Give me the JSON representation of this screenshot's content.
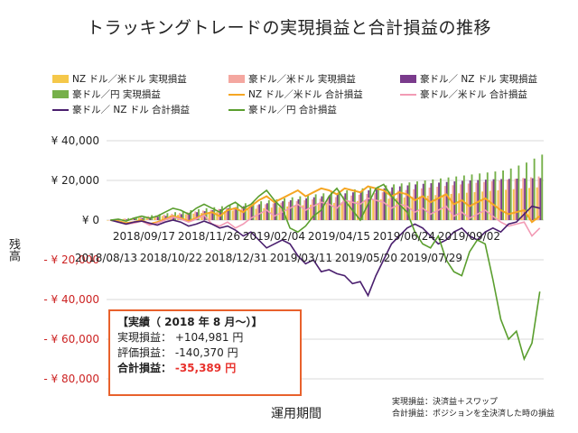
{
  "chart_data": {
    "type": "bar+line",
    "title": "トラッキングトレードの実現損益と合計損益の推移",
    "xlabel": "運用期間",
    "ylabel": "残高",
    "ylim": [
      -80000,
      40000
    ],
    "yticks": [
      {
        "value": 40000,
        "label": "¥ 40,000",
        "color": "#222222"
      },
      {
        "value": 20000,
        "label": "¥ 20,000",
        "color": "#222222"
      },
      {
        "value": 0,
        "label": "¥ 0",
        "color": "#222222"
      },
      {
        "value": -20000,
        "label": "- ¥ 20,000",
        "color": "#cc2222"
      },
      {
        "value": -40000,
        "label": "- ¥ 40,000",
        "color": "#cc2222"
      },
      {
        "value": -60000,
        "label": "- ¥ 60,000",
        "color": "#cc2222"
      },
      {
        "value": -80000,
        "label": "- ¥ 80,000",
        "color": "#cc2222"
      }
    ],
    "xtick_labels_row1": [
      "2018/09/17",
      "2018/11/26",
      "2019/02/04",
      "2019/04/15",
      "2019/06/24",
      "2019/09/02"
    ],
    "xtick_labels_row2": [
      "2018/08/13",
      "2018/10/22",
      "2018/12/31",
      "2019/03/11",
      "2019/05/20",
      "2019/07/29"
    ],
    "n_weeks": 56,
    "legend": [
      {
        "name": "NZ ドル／米ドル 実現損益",
        "kind": "bar",
        "color": "#f5c84a"
      },
      {
        "name": "豪ドル／米ドル 実現損益",
        "kind": "bar",
        "color": "#f4a7a0"
      },
      {
        "name": "豪ドル／ NZ ドル 実現損益",
        "kind": "bar",
        "color": "#7a3b8c"
      },
      {
        "name": "豪ドル／円 実現損益",
        "kind": "bar",
        "color": "#76b04a"
      },
      {
        "name": "NZ ドル／米ドル 合計損益",
        "kind": "line",
        "color": "#f5a623"
      },
      {
        "name": "豪ドル／米ドル 合計損益",
        "kind": "line",
        "color": "#f29bb5"
      },
      {
        "name": "豪ドル／ NZ ドル 合計損益",
        "kind": "line",
        "color": "#4a1f6e"
      },
      {
        "name": "豪ドル／円 合計損益",
        "kind": "line",
        "color": "#5a9e2e"
      }
    ],
    "series": [
      {
        "name": "NZ ドル／米ドル 実現損益",
        "values": [
          0,
          300,
          600,
          900,
          1200,
          1500,
          1800,
          2100,
          2400,
          2700,
          3000,
          3300,
          3600,
          3900,
          4200,
          4500,
          4800,
          5100,
          5400,
          5700,
          6000,
          6300,
          6600,
          6900,
          7200,
          7500,
          7800,
          8100,
          8400,
          8700,
          9000,
          9300,
          9600,
          9900,
          10200,
          10500,
          10800,
          11100,
          11400,
          11700,
          12000,
          12300,
          12600,
          12900,
          13200,
          13500,
          13800,
          14100,
          14400,
          14700,
          15000,
          15300,
          15600,
          15900,
          16200,
          16500
        ]
      },
      {
        "name": "豪ドル／米ドル 実現損益",
        "values": [
          0,
          400,
          800,
          1200,
          1600,
          2000,
          2400,
          2800,
          3200,
          3600,
          4000,
          4400,
          4800,
          5200,
          5600,
          6000,
          6400,
          6800,
          7200,
          7600,
          8000,
          8400,
          8800,
          9200,
          9600,
          10000,
          10400,
          10800,
          11200,
          11600,
          12000,
          12400,
          12800,
          13200,
          13600,
          14000,
          14400,
          14800,
          15200,
          15600,
          16000,
          16400,
          16800,
          17200,
          17600,
          18000,
          18400,
          18800,
          19200,
          19600,
          20000,
          20400,
          20800,
          21200,
          21600,
          22000
        ]
      },
      {
        "name": "豪ドル／ NZ ドル 実現損益",
        "values": [
          0,
          200,
          400,
          700,
          1000,
          1300,
          1700,
          2100,
          2500,
          3000,
          3500,
          4000,
          4500,
          5000,
          5500,
          6000,
          6500,
          7000,
          7500,
          8000,
          8500,
          9000,
          9500,
          10000,
          10500,
          11000,
          11500,
          12000,
          12500,
          13000,
          13500,
          14000,
          14500,
          15000,
          15500,
          16000,
          16500,
          17000,
          17500,
          18000,
          18300,
          18600,
          18900,
          19200,
          19500,
          19800,
          20000,
          20200,
          20400,
          20600,
          20700,
          20800,
          20900,
          21000,
          21100,
          21200
        ]
      },
      {
        "name": "豪ドル／円 実現損益",
        "values": [
          0,
          500,
          1000,
          1500,
          2000,
          2500,
          3000,
          3500,
          4000,
          4500,
          5000,
          5500,
          6000,
          6500,
          7000,
          7500,
          8000,
          8500,
          9000,
          9500,
          10000,
          10500,
          11000,
          11500,
          12000,
          12500,
          13000,
          13500,
          14000,
          14500,
          15000,
          15500,
          16000,
          16500,
          17000,
          17500,
          18000,
          18500,
          19000,
          19500,
          20000,
          20500,
          21000,
          21500,
          22000,
          22500,
          23000,
          23500,
          24000,
          24500,
          25000,
          26000,
          27500,
          29000,
          31000,
          33000
        ]
      },
      {
        "name": "NZ ドル／米ドル 合計損益",
        "values": [
          0,
          -500,
          -1500,
          -1000,
          0,
          -2000,
          -1000,
          500,
          2000,
          1000,
          -500,
          1000,
          3000,
          4000,
          2000,
          5000,
          6000,
          4000,
          7000,
          10000,
          12000,
          9000,
          11000,
          13000,
          15000,
          12000,
          14000,
          16000,
          15000,
          13000,
          16000,
          15000,
          14000,
          17000,
          16000,
          15000,
          12000,
          14000,
          13000,
          10000,
          12000,
          9000,
          11000,
          13000,
          8000,
          10000,
          7000,
          9000,
          11000,
          8000,
          5000,
          3000,
          4000,
          5000,
          -1000,
          2000
        ]
      },
      {
        "name": "豪ドル／米ドル 合計損益",
        "values": [
          0,
          -1000,
          -2000,
          -1500,
          -500,
          -2500,
          -1500,
          0,
          1500,
          500,
          -1000,
          500,
          2500,
          -2000,
          -3000,
          -1000,
          -4000,
          -2000,
          1000,
          3000,
          5000,
          2000,
          4000,
          6000,
          8000,
          5000,
          7000,
          9000,
          8000,
          6000,
          10000,
          9000,
          8000,
          11000,
          10000,
          9000,
          6000,
          8000,
          7000,
          4000,
          6000,
          3000,
          5000,
          7000,
          2000,
          4000,
          1000,
          3000,
          5000,
          2000,
          -1000,
          -3000,
          -2000,
          -1000,
          -8000,
          -4000
        ]
      },
      {
        "name": "豪ドル／ NZ ドル 合計損益",
        "values": [
          0,
          -1000,
          -2000,
          -1000,
          -500,
          -1500,
          -2500,
          -1000,
          0,
          -1000,
          -3000,
          -2000,
          -500,
          -2000,
          -4000,
          -3000,
          -5000,
          -8000,
          -6000,
          -10000,
          -14000,
          -12000,
          -10000,
          -12000,
          -18000,
          -22000,
          -20000,
          -26000,
          -25000,
          -27000,
          -28000,
          -32000,
          -31000,
          -38000,
          -28000,
          -20000,
          -12000,
          -8000,
          -4000,
          -2000,
          -4000,
          -8000,
          -12000,
          -10000,
          -6000,
          -4000,
          -8000,
          -10000,
          -6000,
          -4000,
          -6000,
          -2000,
          -1000,
          3000,
          7000,
          6000
        ]
      },
      {
        "name": "豪ドル／円 合計損益",
        "values": [
          0,
          500,
          -500,
          1000,
          2000,
          1000,
          2000,
          4000,
          6000,
          5000,
          3000,
          6000,
          8000,
          6000,
          4000,
          7000,
          9000,
          6000,
          8000,
          12000,
          15000,
          10000,
          6000,
          -4000,
          -6000,
          -3000,
          2000,
          5000,
          12000,
          16000,
          10000,
          5000,
          0,
          8000,
          16000,
          18000,
          12000,
          8000,
          4000,
          -6000,
          -12000,
          -14000,
          -8000,
          -20000,
          -26000,
          -28000,
          -16000,
          -10000,
          -12000,
          -30000,
          -50000,
          -60000,
          -56000,
          -70000,
          -62000,
          -36000
        ]
      }
    ]
  },
  "summary": {
    "heading": "【実績（ 2018 年 8 月～）】",
    "realized_label": "実現損益：",
    "realized_value": "+104,981 円",
    "unrealized_label": "評価損益：",
    "unrealized_value": "-140,370 円",
    "total_label": "合計損益：",
    "total_value": "-35,389 円"
  },
  "notes": {
    "line1": "実現損益：決済益＋スワップ",
    "line2": "合計損益：ポジションを全決済した時の損益"
  }
}
